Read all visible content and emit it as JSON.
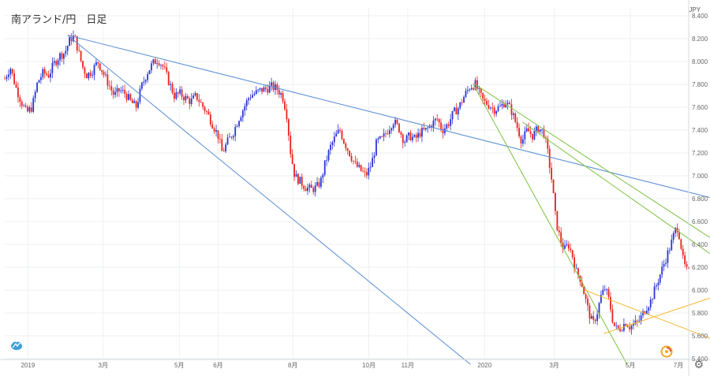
{
  "title": "南アランド/円　日足",
  "currency": "JPY",
  "colors": {
    "up": "#2a35d6",
    "down": "#e8231d",
    "blue_line": "#5b8fd4",
    "green_line": "#7cc242",
    "orange_line": "#f5b82e",
    "grid": "#eef0f2",
    "axis_text": "#666666"
  },
  "icons": {
    "logo": "cloud-logo-icon",
    "brand": "brand-logo-icon",
    "settings": "gear-icon"
  },
  "chart_data": {
    "type": "candlestick",
    "title": "南アランド/円　日足",
    "y_axis_label": "JPY",
    "ylim": [
      5.4,
      8.4
    ],
    "y_ticks": [
      "8.400",
      "8.200",
      "8.000",
      "7.800",
      "7.600",
      "7.400",
      "7.200",
      "7.000",
      "6.800",
      "6.600",
      "6.400",
      "6.200",
      "6.000",
      "5.800",
      "5.600",
      "5.400"
    ],
    "x_ticks": [
      {
        "label": "2019",
        "t": 0.0339
      },
      {
        "label": "3月",
        "t": 0.1439
      },
      {
        "label": "5月",
        "t": 0.2552
      },
      {
        "label": "6月",
        "t": 0.3119
      },
      {
        "label": "8月",
        "t": 0.4213
      },
      {
        "label": "10月",
        "t": 0.5323
      },
      {
        "label": "11月",
        "t": 0.5892
      },
      {
        "label": "2020",
        "t": 0.7016
      },
      {
        "label": "3月",
        "t": 0.8034
      },
      {
        "label": "5月",
        "t": 0.9147
      },
      {
        "label": "7月",
        "t": 1.0273
      }
    ],
    "close_path": [
      [
        0.0,
        7.85
      ],
      [
        0.008,
        7.95
      ],
      [
        0.016,
        7.78
      ],
      [
        0.024,
        7.65
      ],
      [
        0.032,
        7.55
      ],
      [
        0.04,
        7.6
      ],
      [
        0.048,
        7.82
      ],
      [
        0.056,
        7.9
      ],
      [
        0.064,
        7.88
      ],
      [
        0.072,
        7.98
      ],
      [
        0.08,
        8.05
      ],
      [
        0.088,
        8.08
      ],
      [
        0.096,
        8.2
      ],
      [
        0.102,
        8.22
      ],
      [
        0.108,
        8.08
      ],
      [
        0.114,
        7.95
      ],
      [
        0.12,
        7.88
      ],
      [
        0.128,
        7.92
      ],
      [
        0.136,
        8.0
      ],
      [
        0.144,
        7.9
      ],
      [
        0.152,
        7.8
      ],
      [
        0.16,
        7.7
      ],
      [
        0.168,
        7.75
      ],
      [
        0.176,
        7.72
      ],
      [
        0.184,
        7.65
      ],
      [
        0.192,
        7.6
      ],
      [
        0.2,
        7.78
      ],
      [
        0.208,
        7.9
      ],
      [
        0.216,
        7.98
      ],
      [
        0.224,
        8.02
      ],
      [
        0.232,
        7.95
      ],
      [
        0.24,
        7.82
      ],
      [
        0.248,
        7.7
      ],
      [
        0.256,
        7.72
      ],
      [
        0.264,
        7.68
      ],
      [
        0.272,
        7.65
      ],
      [
        0.28,
        7.7
      ],
      [
        0.288,
        7.62
      ],
      [
        0.296,
        7.55
      ],
      [
        0.304,
        7.45
      ],
      [
        0.312,
        7.35
      ],
      [
        0.318,
        7.2
      ],
      [
        0.326,
        7.3
      ],
      [
        0.334,
        7.38
      ],
      [
        0.342,
        7.5
      ],
      [
        0.35,
        7.6
      ],
      [
        0.358,
        7.7
      ],
      [
        0.366,
        7.72
      ],
      [
        0.374,
        7.75
      ],
      [
        0.382,
        7.76
      ],
      [
        0.39,
        7.78
      ],
      [
        0.398,
        7.76
      ],
      [
        0.406,
        7.7
      ],
      [
        0.412,
        7.55
      ],
      [
        0.418,
        7.2
      ],
      [
        0.424,
        7.0
      ],
      [
        0.432,
        6.95
      ],
      [
        0.44,
        6.9
      ],
      [
        0.448,
        6.88
      ],
      [
        0.456,
        6.9
      ],
      [
        0.462,
        6.95
      ],
      [
        0.468,
        7.1
      ],
      [
        0.476,
        7.25
      ],
      [
        0.484,
        7.35
      ],
      [
        0.49,
        7.4
      ],
      [
        0.496,
        7.3
      ],
      [
        0.504,
        7.2
      ],
      [
        0.512,
        7.1
      ],
      [
        0.52,
        7.05
      ],
      [
        0.528,
        7.0
      ],
      [
        0.536,
        7.1
      ],
      [
        0.544,
        7.3
      ],
      [
        0.552,
        7.32
      ],
      [
        0.56,
        7.4
      ],
      [
        0.568,
        7.48
      ],
      [
        0.576,
        7.42
      ],
      [
        0.584,
        7.3
      ],
      [
        0.592,
        7.35
      ],
      [
        0.6,
        7.32
      ],
      [
        0.608,
        7.38
      ],
      [
        0.616,
        7.4
      ],
      [
        0.624,
        7.45
      ],
      [
        0.632,
        7.5
      ],
      [
        0.64,
        7.4
      ],
      [
        0.648,
        7.45
      ],
      [
        0.656,
        7.55
      ],
      [
        0.664,
        7.6
      ],
      [
        0.672,
        7.7
      ],
      [
        0.68,
        7.78
      ],
      [
        0.688,
        7.8
      ],
      [
        0.694,
        7.72
      ],
      [
        0.7,
        7.65
      ],
      [
        0.708,
        7.62
      ],
      [
        0.716,
        7.58
      ],
      [
        0.724,
        7.6
      ],
      [
        0.732,
        7.65
      ],
      [
        0.74,
        7.58
      ],
      [
        0.748,
        7.45
      ],
      [
        0.756,
        7.3
      ],
      [
        0.764,
        7.4
      ],
      [
        0.772,
        7.35
      ],
      [
        0.78,
        7.42
      ],
      [
        0.788,
        7.38
      ],
      [
        0.794,
        7.2
      ],
      [
        0.8,
        6.95
      ],
      [
        0.806,
        6.6
      ],
      [
        0.812,
        6.45
      ],
      [
        0.818,
        6.35
      ],
      [
        0.824,
        6.4
      ],
      [
        0.83,
        6.3
      ],
      [
        0.836,
        6.15
      ],
      [
        0.842,
        6.1
      ],
      [
        0.848,
        5.95
      ],
      [
        0.854,
        5.8
      ],
      [
        0.86,
        5.7
      ],
      [
        0.866,
        5.8
      ],
      [
        0.872,
        5.95
      ],
      [
        0.878,
        6.02
      ],
      [
        0.884,
        5.9
      ],
      [
        0.89,
        5.7
      ],
      [
        0.896,
        5.65
      ],
      [
        0.902,
        5.68
      ],
      [
        0.908,
        5.72
      ],
      [
        0.914,
        5.68
      ],
      [
        0.92,
        5.7
      ],
      [
        0.926,
        5.72
      ],
      [
        0.932,
        5.78
      ],
      [
        0.938,
        5.85
      ],
      [
        0.944,
        5.9
      ],
      [
        0.95,
        6.0
      ],
      [
        0.956,
        6.1
      ],
      [
        0.962,
        6.2
      ],
      [
        0.968,
        6.3
      ],
      [
        0.974,
        6.4
      ],
      [
        0.98,
        6.52
      ],
      [
        0.984,
        6.55
      ],
      [
        0.988,
        6.42
      ],
      [
        0.992,
        6.25
      ],
      [
        0.996,
        6.18
      ],
      [
        1.0,
        6.15
      ]
    ],
    "trendlines": [
      {
        "color": "blue",
        "from": [
          0.092,
          8.23
        ],
        "to": [
          1.031,
          6.81
        ]
      },
      {
        "color": "blue",
        "from": [
          0.092,
          8.23
        ],
        "to": [
          0.681,
          5.35
        ]
      },
      {
        "color": "green",
        "from": [
          0.685,
          7.81
        ],
        "to": [
          1.031,
          6.46
        ]
      },
      {
        "color": "green",
        "from": [
          0.757,
          7.47
        ],
        "to": [
          1.031,
          6.32
        ]
      },
      {
        "color": "green",
        "from": [
          0.685,
          7.8
        ],
        "to": [
          0.91,
          5.35
        ]
      },
      {
        "color": "orange",
        "from": [
          0.876,
          5.62
        ],
        "to": [
          1.031,
          5.93
        ]
      },
      {
        "color": "orange",
        "from": [
          0.848,
          6.0
        ],
        "to": [
          1.031,
          5.58
        ]
      }
    ]
  }
}
